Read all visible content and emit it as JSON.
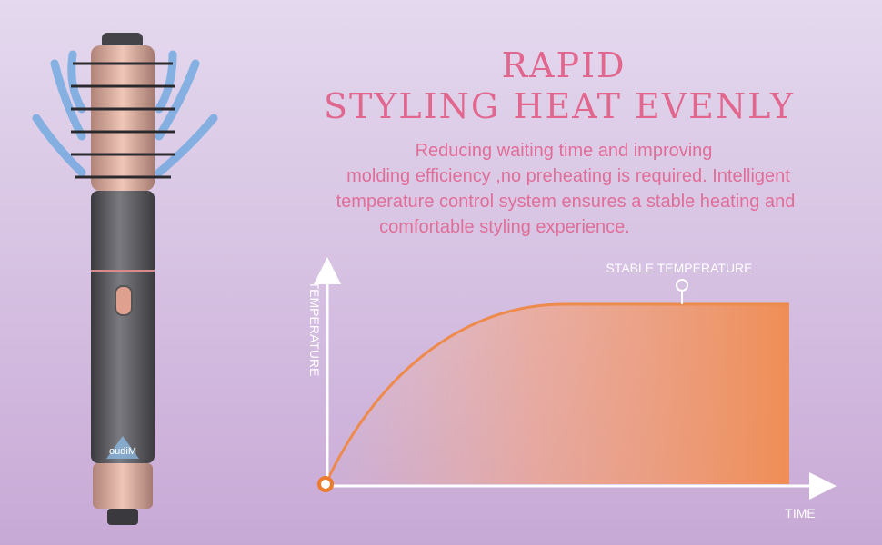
{
  "header": {
    "title_lines": [
      "RAPID",
      "STYLING HEAT EVENLY"
    ],
    "description_lines": [
      "Reducing waiting time and improving",
      "molding efficiency ,no preheating is required. Intelligent",
      "temperature control system ensures a stable heating and",
      "comfortable styling experience."
    ]
  },
  "diagram": {
    "y_axis_label": "TEMPERATURE",
    "x_axis_label": "TIME",
    "annotation": "STABLE TEMPERATURE"
  },
  "product": {
    "brand": "oudiM"
  }
}
